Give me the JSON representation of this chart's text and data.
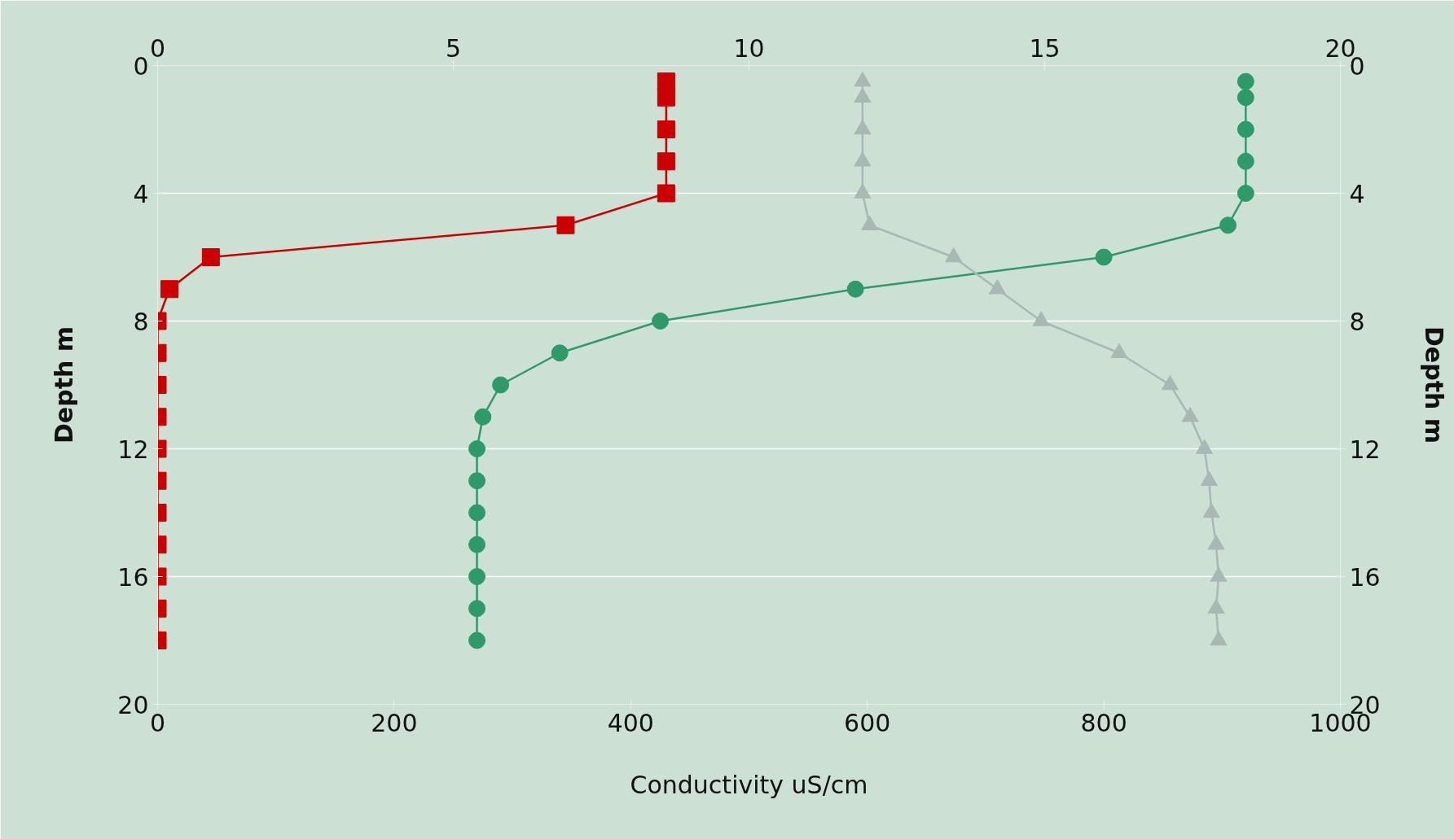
{
  "chart_data": {
    "type": "line",
    "xlabel": "Conductivity uS/cm",
    "ylabel": "Depth m",
    "y2label": "Depth m",
    "xlim": [
      0,
      1000
    ],
    "xticks": [
      0,
      200,
      400,
      600,
      800,
      1000
    ],
    "x2lim": [
      0,
      20
    ],
    "x2ticks": [
      0,
      5,
      10,
      15,
      20
    ],
    "ylim": [
      20,
      0
    ],
    "yticks": [
      0,
      4,
      8,
      12,
      16,
      20
    ],
    "y2lim": [
      20,
      0
    ],
    "y2ticks": [
      0,
      4,
      8,
      12,
      16,
      20
    ],
    "grid": "y",
    "series": [
      {
        "axis": "x2",
        "marker": "square",
        "color": "#cc0000",
        "x": [
          8.6,
          8.6,
          8.6,
          8.6,
          8.6,
          6.9,
          0.9,
          0.2,
          0,
          0,
          0,
          0,
          0,
          0,
          0,
          0,
          0,
          0,
          0
        ],
        "values": [
          0.5,
          1,
          2,
          3,
          4,
          5,
          6,
          7,
          8,
          9,
          10,
          11,
          12,
          13,
          14,
          15,
          16,
          17,
          18
        ]
      },
      {
        "axis": "x2",
        "marker": "circle",
        "color": "#2e9a6a",
        "x": [
          18.4,
          18.4,
          18.4,
          18.4,
          18.4,
          18.1,
          16.0,
          11.8,
          8.5,
          6.8,
          5.8,
          5.5,
          5.4,
          5.4,
          5.4,
          5.4,
          5.4,
          5.4,
          5.4
        ],
        "values": [
          0.5,
          1,
          2,
          3,
          4,
          5,
          6,
          7,
          8,
          9,
          10,
          11,
          12,
          13,
          14,
          15,
          16,
          17,
          18
        ]
      },
      {
        "marker": "triangle",
        "color": "#a9b8b5",
        "x": [
          596,
          596,
          596,
          596,
          596,
          602,
          673,
          710,
          747,
          813,
          856,
          873,
          885,
          889,
          891,
          895,
          897,
          895,
          897
        ],
        "values": [
          0.5,
          1,
          2,
          3,
          4,
          5,
          6,
          7,
          8,
          9,
          10,
          11,
          12,
          13,
          14,
          15,
          16,
          17,
          18
        ]
      }
    ]
  }
}
